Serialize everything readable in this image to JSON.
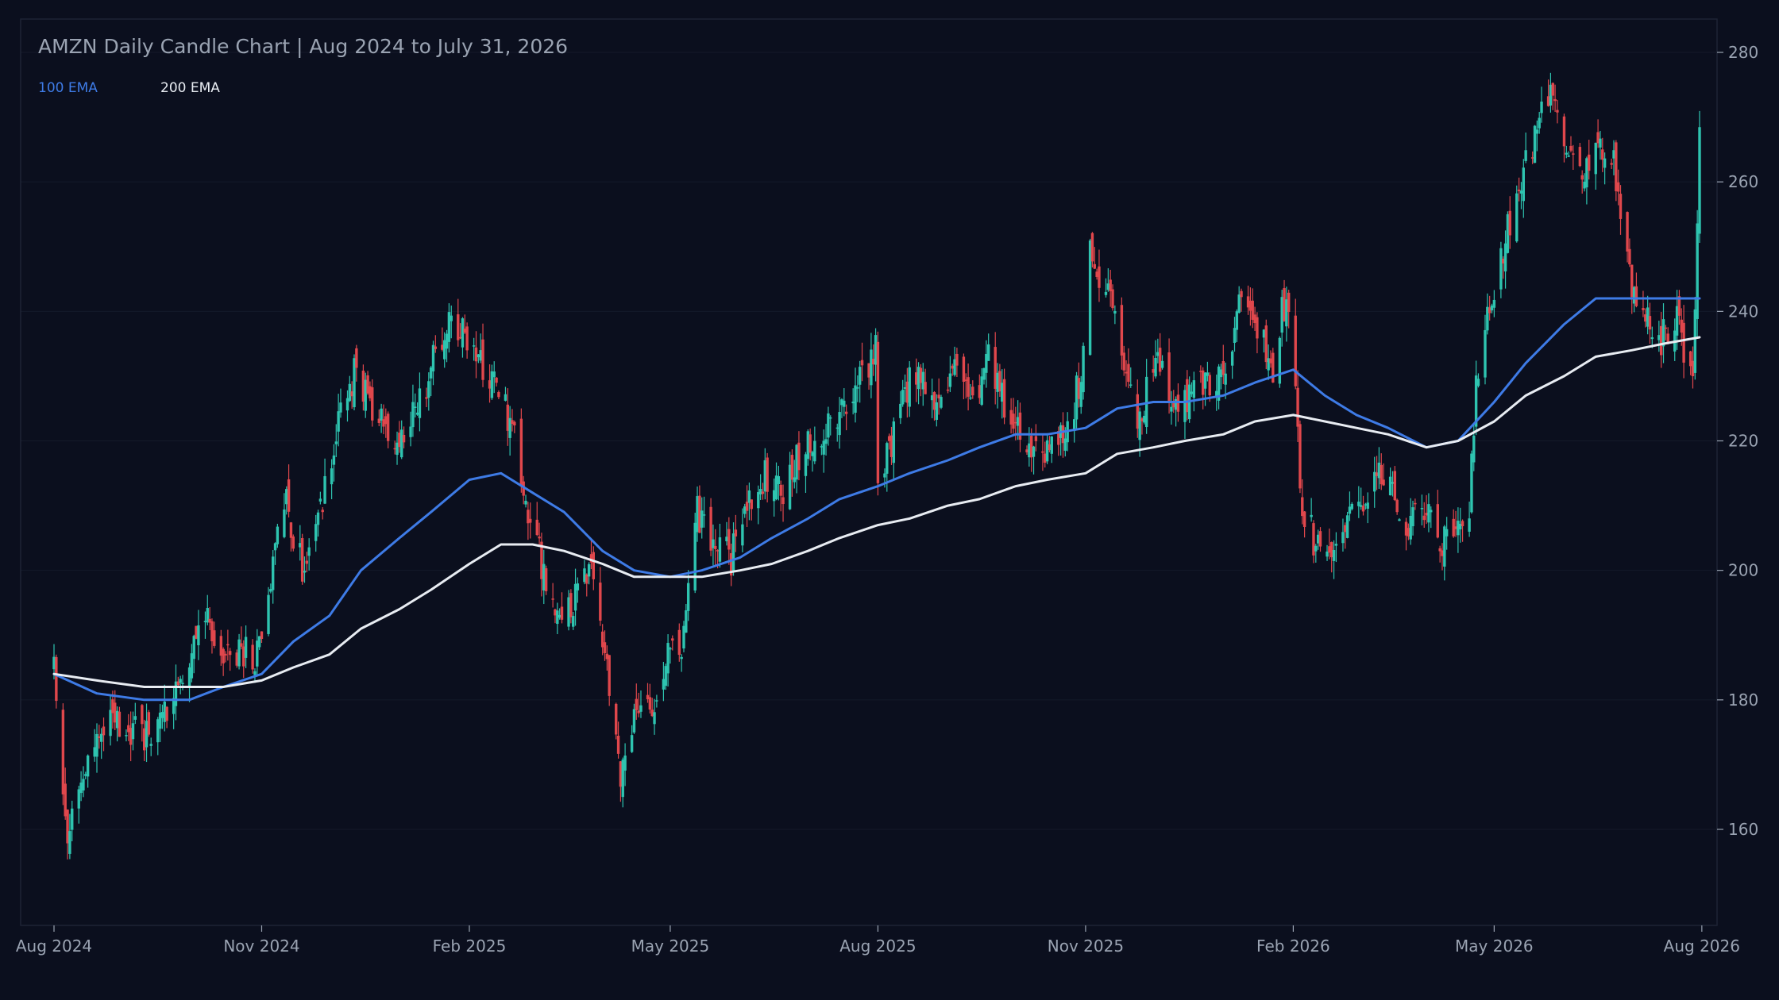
{
  "colors": {
    "background": "#0b0f1e",
    "frame": "#1e2435",
    "grid": "#141a2a",
    "text": "#9aa3b2",
    "up": "#2ec4b0",
    "down": "#e0474c",
    "ema100": "#3e7be6",
    "ema200": "#e8ecf2"
  },
  "chart_data": {
    "type": "candlestick",
    "title": "AMZN Daily Candle Chart | Aug 2024 to July 31, 2026",
    "xlabel": "",
    "ylabel": "",
    "x_range": [
      "2024-08-01",
      "2026-07-31"
    ],
    "ylim": [
      146,
      285
    ],
    "yticks": [
      160,
      180,
      200,
      220,
      240,
      260,
      280
    ],
    "xticks": [
      {
        "date": "2024-08-01",
        "label": "Aug 2024"
      },
      {
        "date": "2024-11-01",
        "label": "Nov 2024"
      },
      {
        "date": "2025-02-01",
        "label": "Feb 2025"
      },
      {
        "date": "2025-05-01",
        "label": "May 2025"
      },
      {
        "date": "2025-08-01",
        "label": "Aug 2025"
      },
      {
        "date": "2025-11-01",
        "label": "Nov 2025"
      },
      {
        "date": "2026-02-01",
        "label": "Feb 2026"
      },
      {
        "date": "2026-05-01",
        "label": "May 2026"
      },
      {
        "date": "2026-08-01",
        "label": "Aug 2026"
      }
    ],
    "y_axis_side": "right",
    "grid": true,
    "legend": {
      "placement": "top-left",
      "items": [
        {
          "label": "100 EMA",
          "color": "#3e7be6"
        },
        {
          "label": "200 EMA",
          "color": "#e8ecf2"
        }
      ]
    },
    "close_path": [
      [
        "2024-08-01",
        186
      ],
      [
        "2024-08-07",
        157
      ],
      [
        "2024-08-13",
        168
      ],
      [
        "2024-08-20",
        175
      ],
      [
        "2024-08-27",
        178
      ],
      [
        "2024-09-03",
        176
      ],
      [
        "2024-09-10",
        174
      ],
      [
        "2024-09-17",
        178
      ],
      [
        "2024-09-24",
        182
      ],
      [
        "2024-10-01",
        188
      ],
      [
        "2024-10-08",
        193
      ],
      [
        "2024-10-15",
        186
      ],
      [
        "2024-10-22",
        188
      ],
      [
        "2024-10-29",
        186
      ],
      [
        "2024-11-05",
        200
      ],
      [
        "2024-11-12",
        210
      ],
      [
        "2024-11-19",
        200
      ],
      [
        "2024-11-26",
        207
      ],
      [
        "2024-12-05",
        222
      ],
      [
        "2024-12-12",
        230
      ],
      [
        "2024-12-19",
        226
      ],
      [
        "2024-12-26",
        222
      ],
      [
        "2025-01-03",
        219
      ],
      [
        "2025-01-10",
        226
      ],
      [
        "2025-01-17",
        233
      ],
      [
        "2025-01-24",
        240
      ],
      [
        "2025-01-31",
        236
      ],
      [
        "2025-02-07",
        231
      ],
      [
        "2025-02-14",
        228
      ],
      [
        "2025-02-21",
        220
      ],
      [
        "2025-02-28",
        208
      ],
      [
        "2025-03-07",
        198
      ],
      [
        "2025-03-14",
        194
      ],
      [
        "2025-03-21",
        196
      ],
      [
        "2025-03-28",
        200
      ],
      [
        "2025-04-04",
        182
      ],
      [
        "2025-04-09",
        166
      ],
      [
        "2025-04-16",
        180
      ],
      [
        "2025-04-23",
        178
      ],
      [
        "2025-04-30",
        186
      ],
      [
        "2025-05-07",
        190
      ],
      [
        "2025-05-12",
        210
      ],
      [
        "2025-05-20",
        204
      ],
      [
        "2025-05-28",
        202
      ],
      [
        "2025-06-05",
        210
      ],
      [
        "2025-06-12",
        215
      ],
      [
        "2025-06-19",
        212
      ],
      [
        "2025-06-26",
        217
      ],
      [
        "2025-07-03",
        220
      ],
      [
        "2025-07-10",
        223
      ],
      [
        "2025-07-17",
        224
      ],
      [
        "2025-07-24",
        230
      ],
      [
        "2025-07-31",
        234
      ],
      [
        "2025-08-01",
        214
      ],
      [
        "2025-08-08",
        221
      ],
      [
        "2025-08-15",
        230
      ],
      [
        "2025-08-22",
        228
      ],
      [
        "2025-08-29",
        227
      ],
      [
        "2025-09-05",
        232
      ],
      [
        "2025-09-12",
        226
      ],
      [
        "2025-09-19",
        234
      ],
      [
        "2025-09-26",
        226
      ],
      [
        "2025-10-03",
        220
      ],
      [
        "2025-10-10",
        218
      ],
      [
        "2025-10-17",
        219
      ],
      [
        "2025-10-24",
        222
      ],
      [
        "2025-10-30",
        230
      ],
      [
        "2025-11-03",
        252
      ],
      [
        "2025-11-07",
        244
      ],
      [
        "2025-11-12",
        246
      ],
      [
        "2025-11-18",
        230
      ],
      [
        "2025-11-24",
        222
      ],
      [
        "2025-12-01",
        232
      ],
      [
        "2025-12-08",
        228
      ],
      [
        "2025-12-15",
        226
      ],
      [
        "2025-12-22",
        230
      ],
      [
        "2025-12-29",
        228
      ],
      [
        "2026-01-05",
        232
      ],
      [
        "2026-01-09",
        245
      ],
      [
        "2026-01-16",
        238
      ],
      [
        "2026-01-23",
        230
      ],
      [
        "2026-01-27",
        240
      ],
      [
        "2026-02-01",
        238
      ],
      [
        "2026-02-05",
        208
      ],
      [
        "2026-02-10",
        205
      ],
      [
        "2026-02-16",
        200
      ],
      [
        "2026-02-23",
        206
      ],
      [
        "2026-03-02",
        210
      ],
      [
        "2026-03-09",
        216
      ],
      [
        "2026-03-16",
        212
      ],
      [
        "2026-03-23",
        207
      ],
      [
        "2026-03-30",
        210
      ],
      [
        "2026-04-06",
        204
      ],
      [
        "2026-04-13",
        208
      ],
      [
        "2026-04-20",
        210
      ],
      [
        "2026-04-23",
        228
      ],
      [
        "2026-04-28",
        240
      ],
      [
        "2026-05-05",
        250
      ],
      [
        "2026-05-12",
        260
      ],
      [
        "2026-05-19",
        266
      ],
      [
        "2026-05-26",
        274
      ],
      [
        "2026-06-02",
        266
      ],
      [
        "2026-06-09",
        262
      ],
      [
        "2026-06-16",
        268
      ],
      [
        "2026-06-23",
        262
      ],
      [
        "2026-06-30",
        246
      ],
      [
        "2026-07-07",
        240
      ],
      [
        "2026-07-14",
        236
      ],
      [
        "2026-07-21",
        238
      ],
      [
        "2026-07-28",
        230
      ],
      [
        "2026-07-31",
        268
      ]
    ],
    "series": [
      {
        "name": "100 EMA",
        "points": [
          [
            "2024-08-01",
            184
          ],
          [
            "2024-08-20",
            181
          ],
          [
            "2024-09-10",
            180
          ],
          [
            "2024-09-30",
            180
          ],
          [
            "2024-10-15",
            182
          ],
          [
            "2024-11-01",
            184
          ],
          [
            "2024-11-15",
            189
          ],
          [
            "2024-12-01",
            193
          ],
          [
            "2024-12-15",
            200
          ],
          [
            "2025-01-01",
            205
          ],
          [
            "2025-01-15",
            209
          ],
          [
            "2025-02-01",
            214
          ],
          [
            "2025-02-15",
            215
          ],
          [
            "2025-03-01",
            212
          ],
          [
            "2025-03-15",
            209
          ],
          [
            "2025-04-01",
            203
          ],
          [
            "2025-04-15",
            200
          ],
          [
            "2025-05-01",
            199
          ],
          [
            "2025-05-15",
            200
          ],
          [
            "2025-06-01",
            202
          ],
          [
            "2025-06-15",
            205
          ],
          [
            "2025-07-01",
            208
          ],
          [
            "2025-07-15",
            211
          ],
          [
            "2025-08-01",
            213
          ],
          [
            "2025-08-15",
            215
          ],
          [
            "2025-09-01",
            217
          ],
          [
            "2025-09-15",
            219
          ],
          [
            "2025-10-01",
            221
          ],
          [
            "2025-10-15",
            221
          ],
          [
            "2025-11-01",
            222
          ],
          [
            "2025-11-15",
            225
          ],
          [
            "2025-12-01",
            226
          ],
          [
            "2025-12-15",
            226
          ],
          [
            "2026-01-01",
            227
          ],
          [
            "2026-01-15",
            229
          ],
          [
            "2026-02-01",
            231
          ],
          [
            "2026-02-15",
            227
          ],
          [
            "2026-03-01",
            224
          ],
          [
            "2026-03-15",
            222
          ],
          [
            "2026-04-01",
            219
          ],
          [
            "2026-04-15",
            220
          ],
          [
            "2026-05-01",
            226
          ],
          [
            "2026-05-15",
            232
          ],
          [
            "2026-06-01",
            238
          ],
          [
            "2026-06-15",
            242
          ],
          [
            "2026-07-01",
            242
          ],
          [
            "2026-07-15",
            242
          ],
          [
            "2026-07-31",
            242
          ]
        ]
      },
      {
        "name": "200 EMA",
        "points": [
          [
            "2024-08-01",
            184
          ],
          [
            "2024-08-20",
            183
          ],
          [
            "2024-09-10",
            182
          ],
          [
            "2024-09-30",
            182
          ],
          [
            "2024-10-15",
            182
          ],
          [
            "2024-11-01",
            183
          ],
          [
            "2024-11-15",
            185
          ],
          [
            "2024-12-01",
            187
          ],
          [
            "2024-12-15",
            191
          ],
          [
            "2025-01-01",
            194
          ],
          [
            "2025-01-15",
            197
          ],
          [
            "2025-02-01",
            201
          ],
          [
            "2025-02-15",
            204
          ],
          [
            "2025-03-01",
            204
          ],
          [
            "2025-03-15",
            203
          ],
          [
            "2025-04-01",
            201
          ],
          [
            "2025-04-15",
            199
          ],
          [
            "2025-05-01",
            199
          ],
          [
            "2025-05-15",
            199
          ],
          [
            "2025-06-01",
            200
          ],
          [
            "2025-06-15",
            201
          ],
          [
            "2025-07-01",
            203
          ],
          [
            "2025-07-15",
            205
          ],
          [
            "2025-08-01",
            207
          ],
          [
            "2025-08-15",
            208
          ],
          [
            "2025-09-01",
            210
          ],
          [
            "2025-09-15",
            211
          ],
          [
            "2025-10-01",
            213
          ],
          [
            "2025-10-15",
            214
          ],
          [
            "2025-11-01",
            215
          ],
          [
            "2025-11-15",
            218
          ],
          [
            "2025-12-01",
            219
          ],
          [
            "2025-12-15",
            220
          ],
          [
            "2026-01-01",
            221
          ],
          [
            "2026-01-15",
            223
          ],
          [
            "2026-02-01",
            224
          ],
          [
            "2026-02-15",
            223
          ],
          [
            "2026-03-01",
            222
          ],
          [
            "2026-03-15",
            221
          ],
          [
            "2026-04-01",
            219
          ],
          [
            "2026-04-15",
            220
          ],
          [
            "2026-05-01",
            223
          ],
          [
            "2026-05-15",
            227
          ],
          [
            "2026-06-01",
            230
          ],
          [
            "2026-06-15",
            233
          ],
          [
            "2026-07-01",
            234
          ],
          [
            "2026-07-15",
            235
          ],
          [
            "2026-07-31",
            236
          ]
        ]
      }
    ]
  }
}
